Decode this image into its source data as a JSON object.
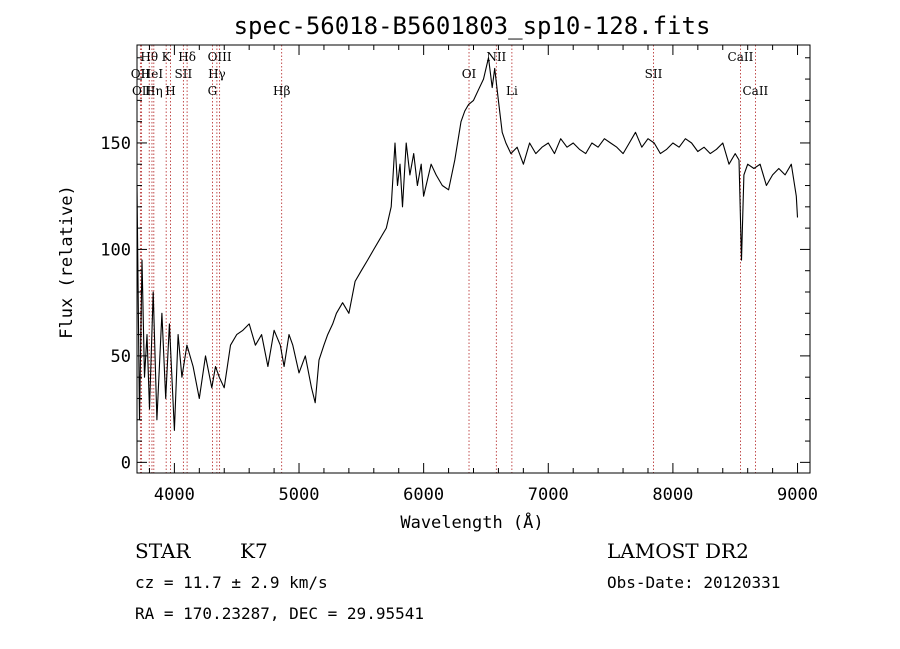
{
  "chart_data": {
    "type": "line",
    "title": "spec-56018-B5601803_sp10-128.fits",
    "xlabel": "Wavelength (Å)",
    "ylabel": "Flux (relative)",
    "xlim": [
      3700,
      9100
    ],
    "ylim": [
      -5,
      196
    ],
    "x_ticks": [
      4000,
      5000,
      6000,
      7000,
      8000,
      9000
    ],
    "y_ticks": [
      0,
      50,
      100,
      150
    ],
    "grid": false,
    "series": [
      {
        "x": [
          3700,
          3720,
          3740,
          3760,
          3780,
          3800,
          3830,
          3860,
          3900,
          3930,
          3960,
          4000,
          4030,
          4060,
          4100,
          4150,
          4200,
          4250,
          4300,
          4330,
          4360,
          4400,
          4450,
          4500,
          4550,
          4600,
          4650,
          4700,
          4750,
          4800,
          4850,
          4880,
          4920,
          4950,
          5000,
          5050,
          5100,
          5130,
          5160,
          5200,
          5230,
          5270,
          5300,
          5350,
          5400,
          5450,
          5500,
          5550,
          5600,
          5650,
          5700,
          5740,
          5770,
          5790,
          5810,
          5830,
          5860,
          5890,
          5920,
          5950,
          5980,
          6000,
          6020,
          6060,
          6100,
          6150,
          6200,
          6250,
          6300,
          6330,
          6360,
          6400,
          6440,
          6480,
          6520,
          6550,
          6570,
          6600,
          6630,
          6660,
          6700,
          6750,
          6800,
          6850,
          6900,
          6950,
          7000,
          7050,
          7100,
          7150,
          7200,
          7250,
          7300,
          7350,
          7400,
          7450,
          7500,
          7550,
          7600,
          7650,
          7700,
          7750,
          7800,
          7850,
          7900,
          7950,
          8000,
          8050,
          8100,
          8150,
          8200,
          8250,
          8300,
          8350,
          8400,
          8450,
          8500,
          8530,
          8550,
          8570,
          8600,
          8650,
          8700,
          8750,
          8800,
          8850,
          8900,
          8950,
          8990,
          9000
        ],
        "y": [
          130,
          20,
          95,
          40,
          60,
          25,
          80,
          20,
          70,
          30,
          65,
          15,
          60,
          40,
          55,
          45,
          30,
          50,
          35,
          45,
          40,
          35,
          55,
          60,
          62,
          65,
          55,
          60,
          45,
          62,
          55,
          45,
          60,
          55,
          42,
          50,
          35,
          28,
          48,
          55,
          60,
          65,
          70,
          75,
          70,
          85,
          90,
          95,
          100,
          105,
          110,
          120,
          150,
          130,
          140,
          120,
          150,
          135,
          145,
          130,
          140,
          125,
          130,
          140,
          135,
          130,
          128,
          142,
          160,
          165,
          168,
          170,
          175,
          180,
          190,
          176,
          185,
          170,
          155,
          150,
          145,
          148,
          140,
          150,
          145,
          148,
          150,
          145,
          152,
          148,
          150,
          147,
          145,
          150,
          148,
          152,
          150,
          148,
          145,
          150,
          155,
          148,
          152,
          150,
          145,
          147,
          150,
          148,
          152,
          150,
          146,
          148,
          145,
          147,
          150,
          140,
          145,
          142,
          95,
          135,
          140,
          138,
          140,
          130,
          135,
          138,
          135,
          140,
          125,
          115
        ]
      }
    ],
    "line_markers": [
      {
        "label": "Hθ",
        "x": 3798,
        "row": 1
      },
      {
        "label": "OII",
        "x": 3727,
        "row": 2
      },
      {
        "label": "OII",
        "x": 3737,
        "row": 3
      },
      {
        "label": "HeI",
        "x": 3820,
        "row": 2
      },
      {
        "label": "Hη",
        "x": 3835,
        "row": 3
      },
      {
        "label": "K",
        "x": 3934,
        "row": 1
      },
      {
        "label": "SII",
        "x": 4072,
        "row": 2
      },
      {
        "label": "H",
        "x": 3969,
        "row": 3
      },
      {
        "label": "Hδ",
        "x": 4102,
        "row": 1
      },
      {
        "label": "OIII",
        "x": 4363,
        "row": 1
      },
      {
        "label": "Hγ",
        "x": 4341,
        "row": 2
      },
      {
        "label": "G",
        "x": 4305,
        "row": 3
      },
      {
        "label": "Hβ",
        "x": 4861,
        "row": 3
      },
      {
        "label": "OI",
        "x": 6364,
        "row": 2
      },
      {
        "label": "NII",
        "x": 6583,
        "row": 1
      },
      {
        "label": "Li",
        "x": 6708,
        "row": 3
      },
      {
        "label": "SII",
        "x": 7844,
        "row": 2
      },
      {
        "label": "CaII",
        "x": 8542,
        "row": 1
      },
      {
        "label": "CaII",
        "x": 8662,
        "row": 3
      }
    ]
  },
  "info": {
    "object_class": "STAR",
    "subclass": "K7",
    "survey": "LAMOST DR2",
    "redshift": "cz = 11.7 ± 2.9 km/s",
    "obs_date": "Obs-Date: 20120331",
    "coords": "RA = 170.23287, DEC =  29.95541"
  },
  "colors": {
    "spectrum": "#000000",
    "marker_lines": "#b22222",
    "axes": "#000000",
    "background": "#ffffff"
  }
}
